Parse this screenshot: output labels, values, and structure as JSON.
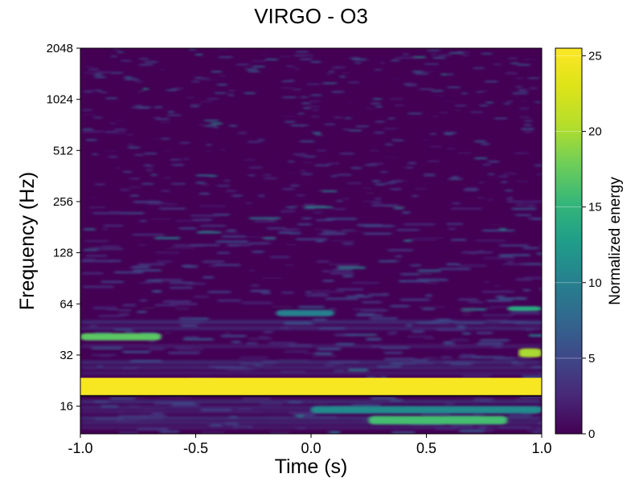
{
  "chart_data": {
    "type": "heatmap",
    "title": "VIRGO - O3",
    "xlabel": "Time (s)",
    "ylabel": "Frequency (Hz)",
    "xlim": [
      -1.0,
      1.0
    ],
    "ylim": [
      11,
      2048
    ],
    "yscale": "log2",
    "x_ticks": [
      -1.0,
      -0.5,
      0.0,
      0.5,
      1.0
    ],
    "x_tick_labels": [
      "-1.0",
      "-0.5",
      "0.0",
      "0.5",
      "1.0"
    ],
    "y_ticks": [
      16,
      32,
      64,
      128,
      256,
      512,
      1024,
      2048
    ],
    "y_tick_labels": [
      "16",
      "32",
      "64",
      "128",
      "256",
      "512",
      "1024",
      "2048"
    ],
    "colormap": "viridis",
    "colorbar": {
      "label": "Normalized energy",
      "range": [
        0,
        25.5
      ],
      "ticks": [
        0,
        5,
        10,
        15,
        20,
        25
      ],
      "tick_labels": [
        "0",
        "5",
        "10",
        "15",
        "20",
        "25"
      ]
    },
    "features": [
      {
        "x": [
          -1.0,
          1.0
        ],
        "y_hz": [
          18.5,
          23.5
        ],
        "energy": 25
      },
      {
        "x": [
          -1.0,
          -0.65
        ],
        "y_hz": [
          39,
          43
        ],
        "energy": 17
      },
      {
        "x": [
          0.9,
          1.0
        ],
        "y_hz": [
          31,
          35
        ],
        "energy": 20
      },
      {
        "x": [
          0.85,
          1.0
        ],
        "y_hz": [
          58,
          62
        ],
        "energy": 14
      },
      {
        "x": [
          -0.15,
          0.1
        ],
        "y_hz": [
          54,
          59
        ],
        "energy": 10
      },
      {
        "x": [
          0.25,
          0.85
        ],
        "y_hz": [
          12.5,
          14
        ],
        "energy": 16
      },
      {
        "x": [
          0.0,
          1.0
        ],
        "y_hz": [
          14.5,
          16
        ],
        "energy": 11
      }
    ]
  }
}
